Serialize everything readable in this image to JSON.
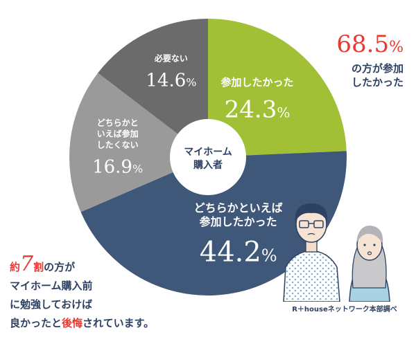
{
  "colors": {
    "slice_1": "#a2c035",
    "slice_2": "#3f5778",
    "slice_3": "#9a9a9a",
    "slice_4": "#6b6b6b",
    "accent_red": "#e8382f",
    "navy": "#2d4163"
  },
  "chart_data": {
    "type": "pie",
    "title": "",
    "center_label": [
      "マイホーム",
      "購入者"
    ],
    "start": "top, clockwise",
    "slices": [
      {
        "label_lines": [
          "参加したかった"
        ],
        "value": 24.3,
        "display": "24.3",
        "unit": "%"
      },
      {
        "label_lines": [
          "どちらかといえば",
          "参加したかった"
        ],
        "value": 44.2,
        "display": "44.2",
        "unit": "%"
      },
      {
        "label_lines": [
          "どちらかと",
          "いえば参加",
          "したくない"
        ],
        "value": 16.9,
        "display": "16.9",
        "unit": "%"
      },
      {
        "label_lines": [
          "必要ない"
        ],
        "value": 14.6,
        "display": "14.6",
        "unit": "%"
      }
    ]
  },
  "callout": {
    "value": "68.5",
    "unit": "%",
    "line1": "の方が参加",
    "line2": "したかった"
  },
  "note": {
    "line1_pre": "約",
    "line1_num": "7",
    "line1_red": "割",
    "line1_post": "の方が",
    "line2": "マイホーム購入前",
    "line3": "に勉強しておけば",
    "line4_pre": "良かったと",
    "line4_red": "後悔",
    "line4_post": "されています。"
  },
  "source": "R＋houseネットワーク本部調べ"
}
